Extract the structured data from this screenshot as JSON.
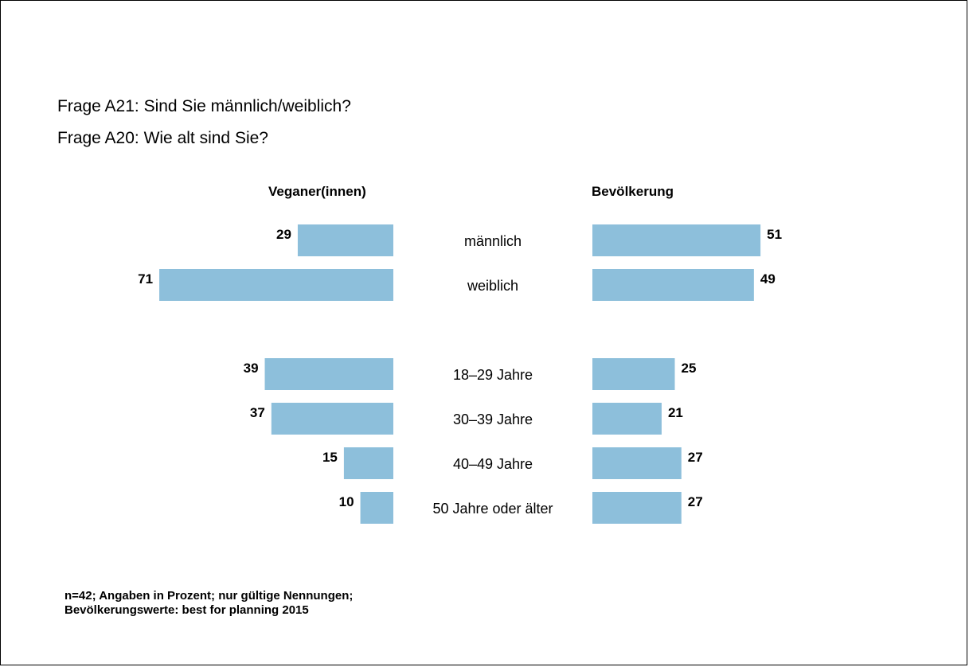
{
  "questions": {
    "q1": "Frage A21: Sind Sie männlich/weiblich?",
    "q2": "Frage A20: Wie alt sind Sie?"
  },
  "headers": {
    "left": "Veganer(innen)",
    "right": "Bevölkerung"
  },
  "footnote": {
    "line1": "n=42; Angaben in Prozent; nur gültige Nennungen;",
    "line2": "Bevölkerungswerte: best for planning 2015"
  },
  "colors": {
    "bar": "#8dbfdb",
    "text": "#000000"
  },
  "chart_data": {
    "type": "bar",
    "orientation": "horizontal",
    "layout": "butterfly",
    "categories": [
      "männlich",
      "weiblich",
      "18–29 Jahre",
      "30–39 Jahre",
      "40–49 Jahre",
      "50 Jahre oder älter"
    ],
    "groups": [
      {
        "categories": [
          "männlich",
          "weiblich"
        ]
      },
      {
        "categories": [
          "18–29 Jahre",
          "30–39 Jahre",
          "40–49 Jahre",
          "50 Jahre oder älter"
        ]
      }
    ],
    "series": [
      {
        "name": "Veganer(innen)",
        "side": "left",
        "values": [
          29,
          71,
          39,
          37,
          15,
          10
        ]
      },
      {
        "name": "Bevölkerung",
        "side": "right",
        "values": [
          51,
          49,
          25,
          21,
          27,
          27
        ]
      }
    ],
    "unit": "Prozent",
    "data_labels": true
  }
}
